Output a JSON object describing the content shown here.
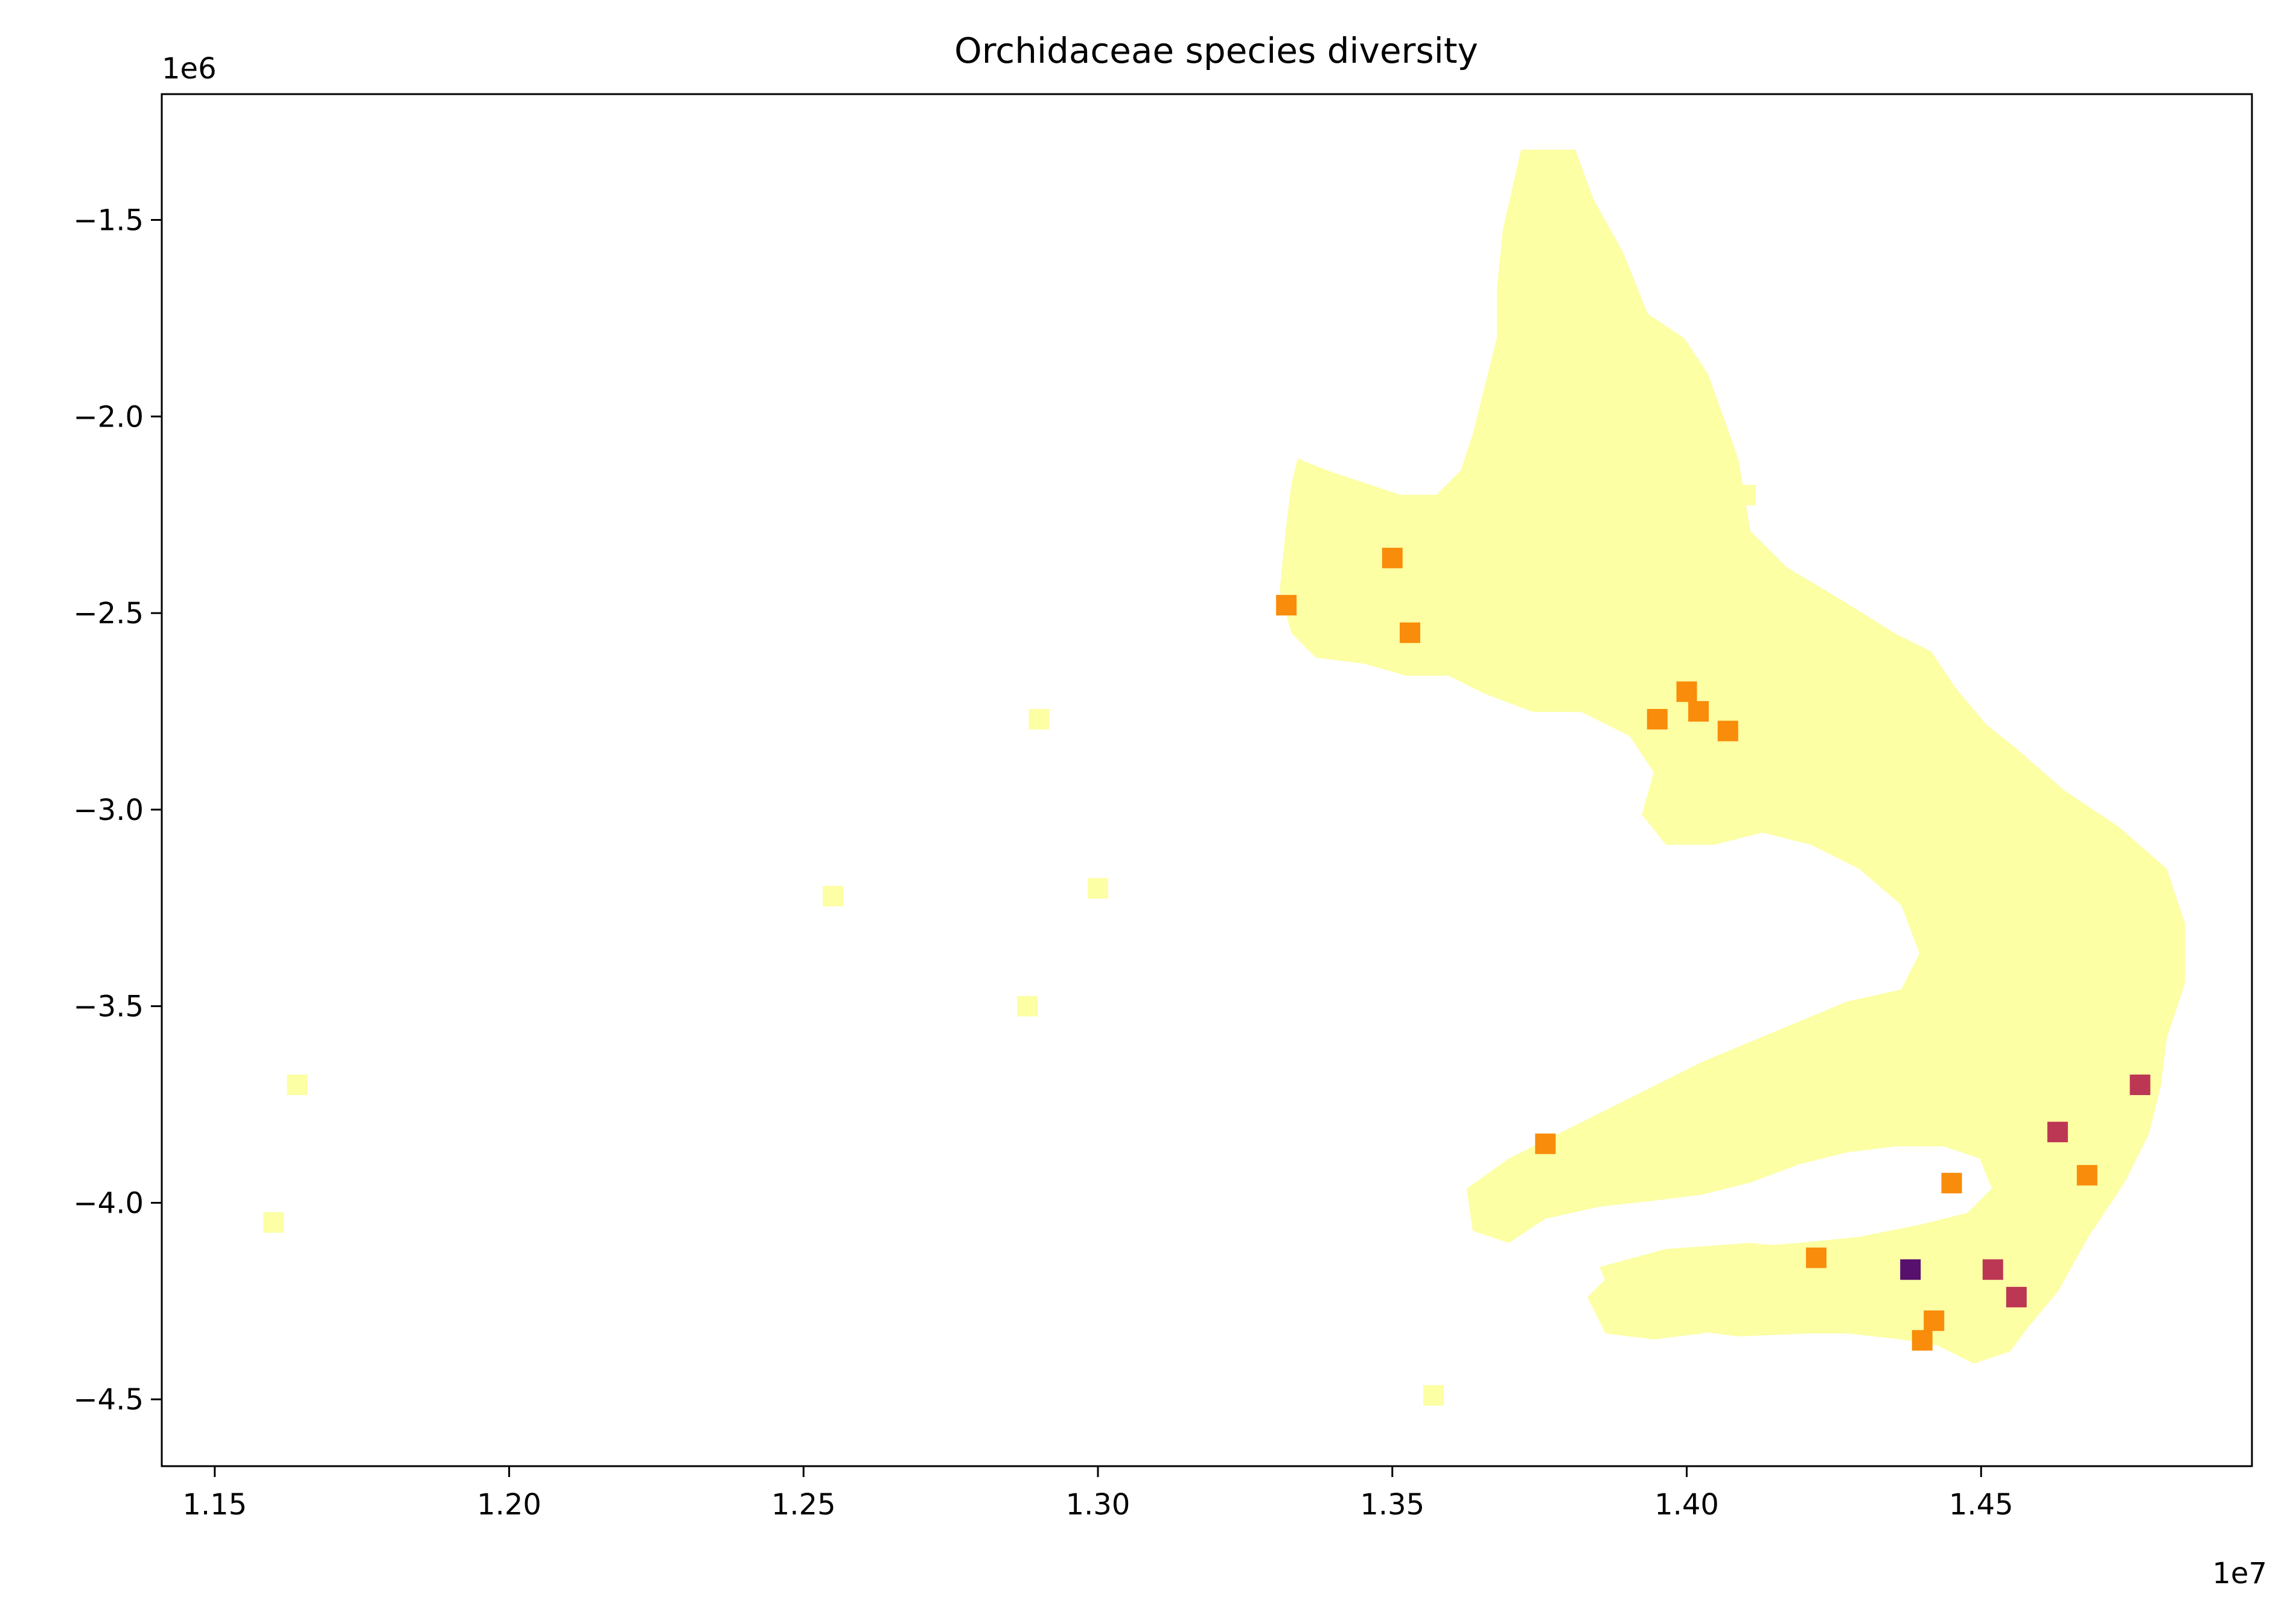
{
  "chart_data": {
    "type": "choropleth-map",
    "title": "Orchidaceae species diversity",
    "xlabel": "",
    "ylabel": "",
    "x_offset_label": "1e7",
    "y_offset_label": "1e6",
    "x_ticks": [
      "1.15",
      "1.20",
      "1.25",
      "1.30",
      "1.35",
      "1.40",
      "1.45"
    ],
    "y_ticks": [
      "−1.5",
      "−2.0",
      "−2.5",
      "−3.0",
      "−3.5",
      "−4.0",
      "−4.5"
    ],
    "xlim": [
      11410000,
      14960000
    ],
    "ylim": [
      -4670000,
      -1180000
    ],
    "grid": false,
    "colormap": "inferno",
    "colors": {
      "background": "#ffffff",
      "low": "#fcffa4",
      "mid": "#f98c0a",
      "high": "#bc3754",
      "very_high": "#57106e"
    },
    "cells": [
      {
        "x": 13750000,
        "y": -1350000,
        "level": "low"
      },
      {
        "x": 13800000,
        "y": -1550000,
        "level": "low"
      },
      {
        "x": 13850000,
        "y": -1800000,
        "level": "low"
      },
      {
        "x": 13780000,
        "y": -2050000,
        "level": "low"
      },
      {
        "x": 13950000,
        "y": -2150000,
        "level": "low"
      },
      {
        "x": 14100000,
        "y": -2200000,
        "level": "low"
      },
      {
        "x": 13400000,
        "y": -2350000,
        "level": "low"
      },
      {
        "x": 13600000,
        "y": -2400000,
        "level": "low"
      },
      {
        "x": 13500000,
        "y": -2360000,
        "level": "mid"
      },
      {
        "x": 13530000,
        "y": -2550000,
        "level": "mid"
      },
      {
        "x": 13320000,
        "y": -2480000,
        "level": "mid"
      },
      {
        "x": 13950000,
        "y": -2600000,
        "level": "low"
      },
      {
        "x": 14000000,
        "y": -2700000,
        "level": "mid"
      },
      {
        "x": 14020000,
        "y": -2750000,
        "level": "mid"
      },
      {
        "x": 13950000,
        "y": -2770000,
        "level": "mid"
      },
      {
        "x": 14070000,
        "y": -2800000,
        "level": "mid"
      },
      {
        "x": 14250000,
        "y": -2800000,
        "level": "low"
      },
      {
        "x": 14400000,
        "y": -3000000,
        "level": "low"
      },
      {
        "x": 14600000,
        "y": -3200000,
        "level": "low"
      },
      {
        "x": 14700000,
        "y": -3400000,
        "level": "low"
      },
      {
        "x": 14500000,
        "y": -3600000,
        "level": "low"
      },
      {
        "x": 14300000,
        "y": -3700000,
        "level": "low"
      },
      {
        "x": 14100000,
        "y": -3750000,
        "level": "low"
      },
      {
        "x": 13760000,
        "y": -3850000,
        "level": "mid"
      },
      {
        "x": 14450000,
        "y": -3950000,
        "level": "mid"
      },
      {
        "x": 14630000,
        "y": -3820000,
        "level": "high"
      },
      {
        "x": 14680000,
        "y": -3930000,
        "level": "mid"
      },
      {
        "x": 14770000,
        "y": -3700000,
        "level": "high"
      },
      {
        "x": 14220000,
        "y": -4140000,
        "level": "mid"
      },
      {
        "x": 14380000,
        "y": -4170000,
        "level": "very_high"
      },
      {
        "x": 14520000,
        "y": -4170000,
        "level": "high"
      },
      {
        "x": 14420000,
        "y": -4300000,
        "level": "mid"
      },
      {
        "x": 14560000,
        "y": -4240000,
        "level": "high"
      },
      {
        "x": 14400000,
        "y": -4350000,
        "level": "mid"
      },
      {
        "x": 13950000,
        "y": -4200000,
        "level": "low"
      },
      {
        "x": 14100000,
        "y": -4250000,
        "level": "low"
      },
      {
        "x": 13570000,
        "y": -4490000,
        "level": "low"
      },
      {
        "x": 12900000,
        "y": -2770000,
        "level": "low"
      },
      {
        "x": 13000000,
        "y": -3200000,
        "level": "low"
      },
      {
        "x": 12880000,
        "y": -3500000,
        "level": "low"
      },
      {
        "x": 12550000,
        "y": -3220000,
        "level": "low"
      },
      {
        "x": 11640000,
        "y": -3700000,
        "level": "low"
      },
      {
        "x": 11600000,
        "y": -4050000,
        "level": "low"
      }
    ]
  }
}
